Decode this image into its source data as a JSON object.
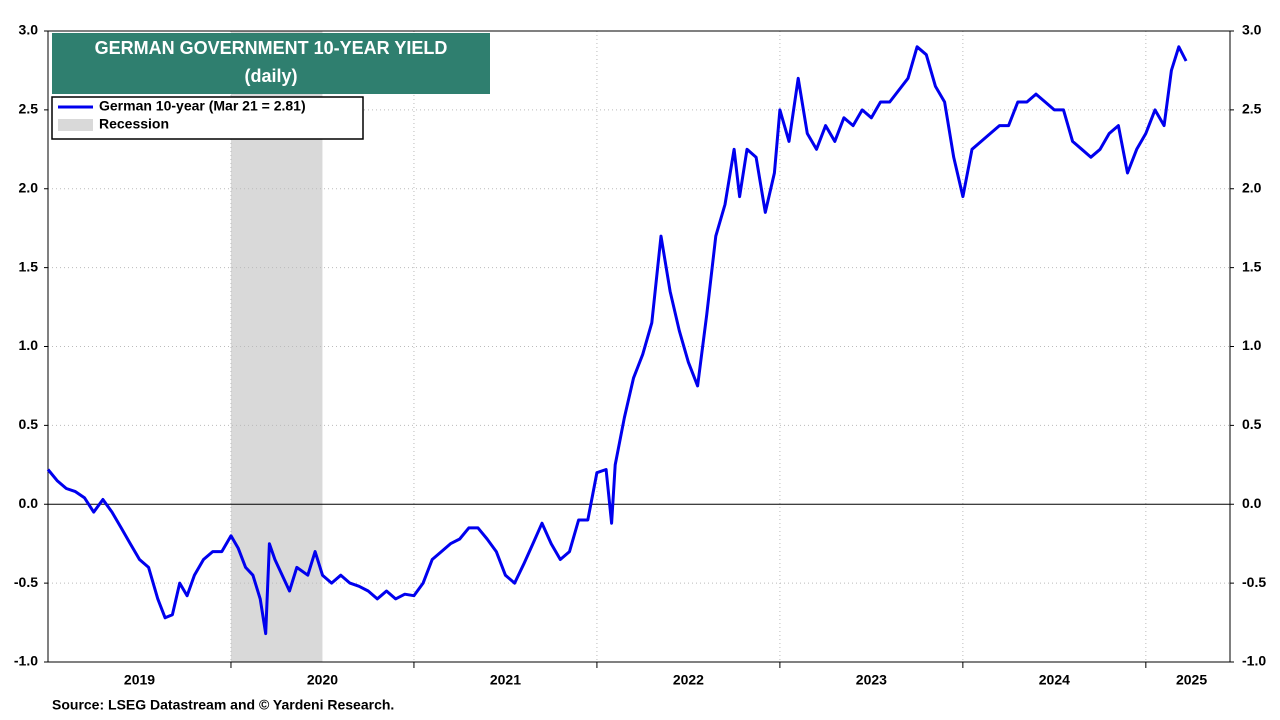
{
  "chart_data": {
    "type": "line",
    "title": "GERMAN GOVERNMENT 10-YEAR YIELD",
    "subtitle": "(daily)",
    "source": "Source: LSEG Datastream and © Yardeni Research.",
    "x": [
      2019.0,
      2019.05,
      2019.1,
      2019.15,
      2019.2,
      2019.25,
      2019.3,
      2019.35,
      2019.4,
      2019.45,
      2019.5,
      2019.55,
      2019.6,
      2019.64,
      2019.68,
      2019.72,
      2019.76,
      2019.8,
      2019.85,
      2019.9,
      2019.95,
      2020.0,
      2020.04,
      2020.08,
      2020.12,
      2020.16,
      2020.19,
      2020.21,
      2020.24,
      2020.28,
      2020.32,
      2020.36,
      2020.42,
      2020.46,
      2020.5,
      2020.55,
      2020.6,
      2020.65,
      2020.7,
      2020.75,
      2020.8,
      2020.85,
      2020.9,
      2020.95,
      2021.0,
      2021.05,
      2021.1,
      2021.15,
      2021.2,
      2021.25,
      2021.3,
      2021.35,
      2021.4,
      2021.45,
      2021.5,
      2021.55,
      2021.6,
      2021.65,
      2021.7,
      2021.75,
      2021.8,
      2021.85,
      2021.9,
      2021.95,
      2022.0,
      2022.05,
      2022.08,
      2022.1,
      2022.15,
      2022.2,
      2022.25,
      2022.3,
      2022.35,
      2022.4,
      2022.45,
      2022.5,
      2022.55,
      2022.6,
      2022.65,
      2022.7,
      2022.75,
      2022.78,
      2022.82,
      2022.87,
      2022.92,
      2022.97,
      2023.0,
      2023.05,
      2023.1,
      2023.15,
      2023.2,
      2023.25,
      2023.3,
      2023.35,
      2023.4,
      2023.45,
      2023.5,
      2023.55,
      2023.6,
      2023.7,
      2023.75,
      2023.8,
      2023.85,
      2023.9,
      2023.95,
      2024.0,
      2024.05,
      2024.1,
      2024.15,
      2024.2,
      2024.25,
      2024.3,
      2024.35,
      2024.4,
      2024.45,
      2024.5,
      2024.55,
      2024.6,
      2024.65,
      2024.7,
      2024.75,
      2024.8,
      2024.85,
      2024.9,
      2024.95,
      2025.0,
      2025.05,
      2025.1,
      2025.14,
      2025.18,
      2025.22
    ],
    "series": [
      {
        "name": "German 10-year (Mar 21 = 2.81)",
        "color": "#0000ee",
        "values": [
          0.22,
          0.15,
          0.1,
          0.08,
          0.04,
          -0.05,
          0.03,
          -0.05,
          -0.15,
          -0.25,
          -0.35,
          -0.4,
          -0.6,
          -0.72,
          -0.7,
          -0.5,
          -0.58,
          -0.45,
          -0.35,
          -0.3,
          -0.3,
          -0.2,
          -0.28,
          -0.4,
          -0.45,
          -0.6,
          -0.82,
          -0.25,
          -0.35,
          -0.45,
          -0.55,
          -0.4,
          -0.45,
          -0.3,
          -0.45,
          -0.5,
          -0.45,
          -0.5,
          -0.52,
          -0.55,
          -0.6,
          -0.55,
          -0.6,
          -0.57,
          -0.58,
          -0.5,
          -0.35,
          -0.3,
          -0.25,
          -0.22,
          -0.15,
          -0.15,
          -0.22,
          -0.3,
          -0.45,
          -0.5,
          -0.38,
          -0.25,
          -0.12,
          -0.25,
          -0.35,
          -0.3,
          -0.1,
          -0.1,
          0.2,
          0.22,
          -0.12,
          0.25,
          0.55,
          0.8,
          0.95,
          1.15,
          1.7,
          1.35,
          1.1,
          0.9,
          0.75,
          1.2,
          1.7,
          1.9,
          2.25,
          1.95,
          2.25,
          2.2,
          1.85,
          2.1,
          2.5,
          2.3,
          2.7,
          2.35,
          2.25,
          2.4,
          2.3,
          2.45,
          2.4,
          2.5,
          2.45,
          2.55,
          2.55,
          2.7,
          2.9,
          2.85,
          2.65,
          2.55,
          2.2,
          1.95,
          2.25,
          2.3,
          2.35,
          2.4,
          2.4,
          2.55,
          2.55,
          2.6,
          2.55,
          2.5,
          2.5,
          2.3,
          2.25,
          2.2,
          2.25,
          2.35,
          2.4,
          2.1,
          2.25,
          2.35,
          2.5,
          2.4,
          2.75,
          2.9,
          2.81
        ]
      }
    ],
    "recession_label": "Recession",
    "recession_color": "#d9d9d9",
    "recessions": [
      [
        2020.0,
        2020.5
      ]
    ],
    "xlim": [
      2019.0,
      2025.46
    ],
    "xgrid": [
      2020,
      2021,
      2022,
      2023,
      2024,
      2025
    ],
    "xticks": [
      {
        "value": 2019.5,
        "label": "2019"
      },
      {
        "value": 2020.5,
        "label": "2020"
      },
      {
        "value": 2021.5,
        "label": "2021"
      },
      {
        "value": 2022.5,
        "label": "2022"
      },
      {
        "value": 2023.5,
        "label": "2023"
      },
      {
        "value": 2024.5,
        "label": "2024"
      },
      {
        "value": 2025.25,
        "label": "2025"
      }
    ],
    "ylim": [
      -1,
      3
    ],
    "yticks": [
      {
        "value": -1,
        "label": "-1.0"
      },
      {
        "value": -0.5,
        "label": "-0.5"
      },
      {
        "value": 0,
        "label": "0.0"
      },
      {
        "value": 0.5,
        "label": "0.5"
      },
      {
        "value": 1,
        "label": "1.0"
      },
      {
        "value": 1.5,
        "label": "1.5"
      },
      {
        "value": 2,
        "label": "2.0"
      },
      {
        "value": 2.5,
        "label": "2.5"
      },
      {
        "value": 3,
        "label": "3.0"
      }
    ],
    "grid": true
  }
}
